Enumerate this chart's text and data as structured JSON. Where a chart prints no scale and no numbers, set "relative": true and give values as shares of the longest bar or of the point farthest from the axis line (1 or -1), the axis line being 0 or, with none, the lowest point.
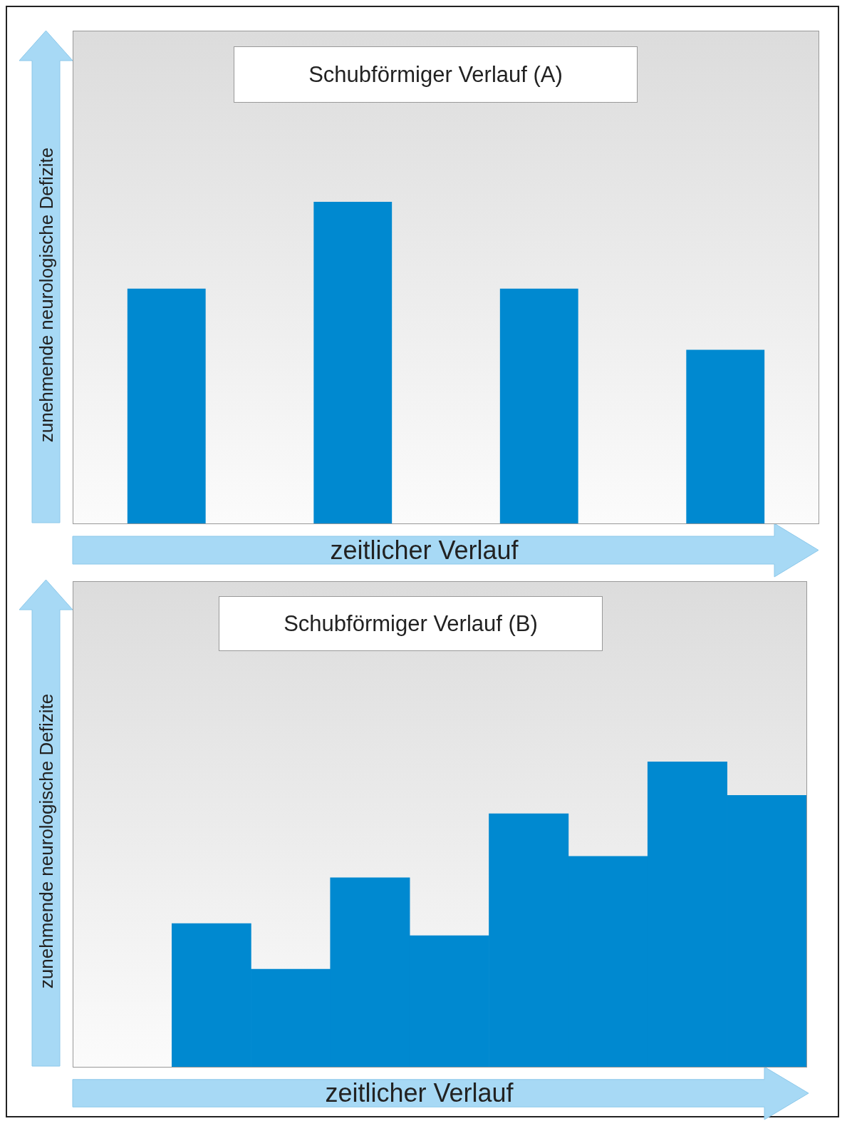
{
  "chart_data": [
    {
      "type": "bar",
      "title": "Schubförmiger Verlauf (A)",
      "xlabel": "zeitlicher Verlauf",
      "ylabel": "zunehmende neurologische Defizite",
      "categories": [
        null,
        null,
        null,
        null
      ],
      "values": [
        0.73,
        1,
        0.73,
        0.54
      ],
      "color": "#0089d0",
      "relative": true,
      "tick_labels": false
    },
    {
      "type": "bar",
      "title": "Schubförmiger Verlauf (B)",
      "xlabel": "zeitlicher Verlauf",
      "ylabel": "zunehmende neurologische Defizite",
      "categories": [
        null,
        null,
        null,
        null,
        null,
        null,
        null,
        null
      ],
      "values": [
        0.47,
        0.32,
        0.62,
        0.43,
        0.83,
        0.69,
        1,
        0.89
      ],
      "color": "#0089d0",
      "relative": true,
      "tick_labels": false
    }
  ]
}
